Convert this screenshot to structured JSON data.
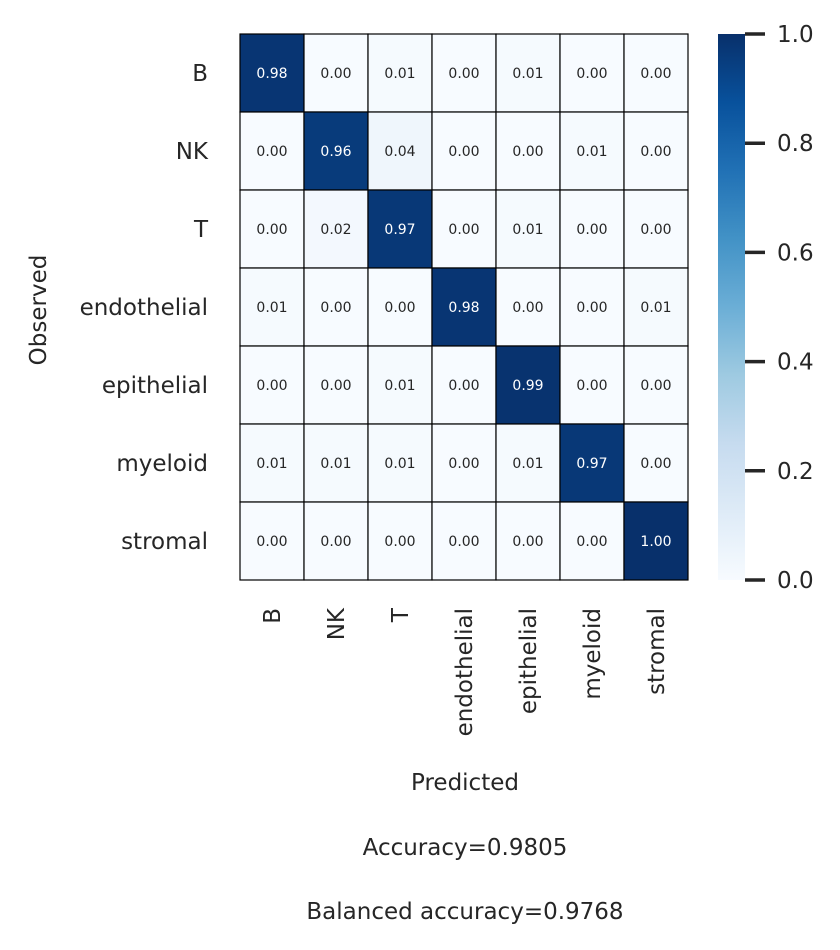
{
  "chart_data": {
    "type": "heatmap",
    "x_categories": [
      "B",
      "NK",
      "T",
      "endothelial",
      "epithelial",
      "myeloid",
      "stromal"
    ],
    "y_categories": [
      "B",
      "NK",
      "T",
      "endothelial",
      "epithelial",
      "myeloid",
      "stromal"
    ],
    "values": [
      [
        0.98,
        0.0,
        0.01,
        0.0,
        0.01,
        0.0,
        0.0
      ],
      [
        0.0,
        0.96,
        0.04,
        0.0,
        0.0,
        0.01,
        0.0
      ],
      [
        0.0,
        0.02,
        0.97,
        0.0,
        0.01,
        0.0,
        0.0
      ],
      [
        0.01,
        0.0,
        0.0,
        0.98,
        0.0,
        0.0,
        0.01
      ],
      [
        0.0,
        0.0,
        0.01,
        0.0,
        0.99,
        0.0,
        0.0
      ],
      [
        0.01,
        0.01,
        0.01,
        0.0,
        0.01,
        0.97,
        0.0
      ],
      [
        0.0,
        0.0,
        0.0,
        0.0,
        0.0,
        0.0,
        1.0
      ]
    ],
    "cell_labels": [
      [
        "0.98",
        "0.00",
        "0.01",
        "0.00",
        "0.01",
        "0.00",
        "0.00"
      ],
      [
        "0.00",
        "0.96",
        "0.04",
        "0.00",
        "0.00",
        "0.01",
        "0.00"
      ],
      [
        "0.00",
        "0.02",
        "0.97",
        "0.00",
        "0.01",
        "0.00",
        "0.00"
      ],
      [
        "0.01",
        "0.00",
        "0.00",
        "0.98",
        "0.00",
        "0.00",
        "0.01"
      ],
      [
        "0.00",
        "0.00",
        "0.01",
        "0.00",
        "0.99",
        "0.00",
        "0.00"
      ],
      [
        "0.01",
        "0.01",
        "0.01",
        "0.00",
        "0.01",
        "0.97",
        "0.00"
      ],
      [
        "0.00",
        "0.00",
        "0.00",
        "0.00",
        "0.00",
        "0.00",
        "1.00"
      ]
    ],
    "xlabel": "Predicted",
    "ylabel": "Observed",
    "colormap": "Blues",
    "color_range": [
      0.0,
      1.0
    ],
    "colorbar_ticks": [
      "0.0",
      "0.2",
      "0.4",
      "0.6",
      "0.8",
      "1.0"
    ],
    "colorbar_tick_values": [
      0.0,
      0.2,
      0.4,
      0.6,
      0.8,
      1.0
    ],
    "cell_border_color": "#000000",
    "annotations": [
      "Accuracy=0.9805",
      "Balanced accuracy=0.9768"
    ]
  }
}
